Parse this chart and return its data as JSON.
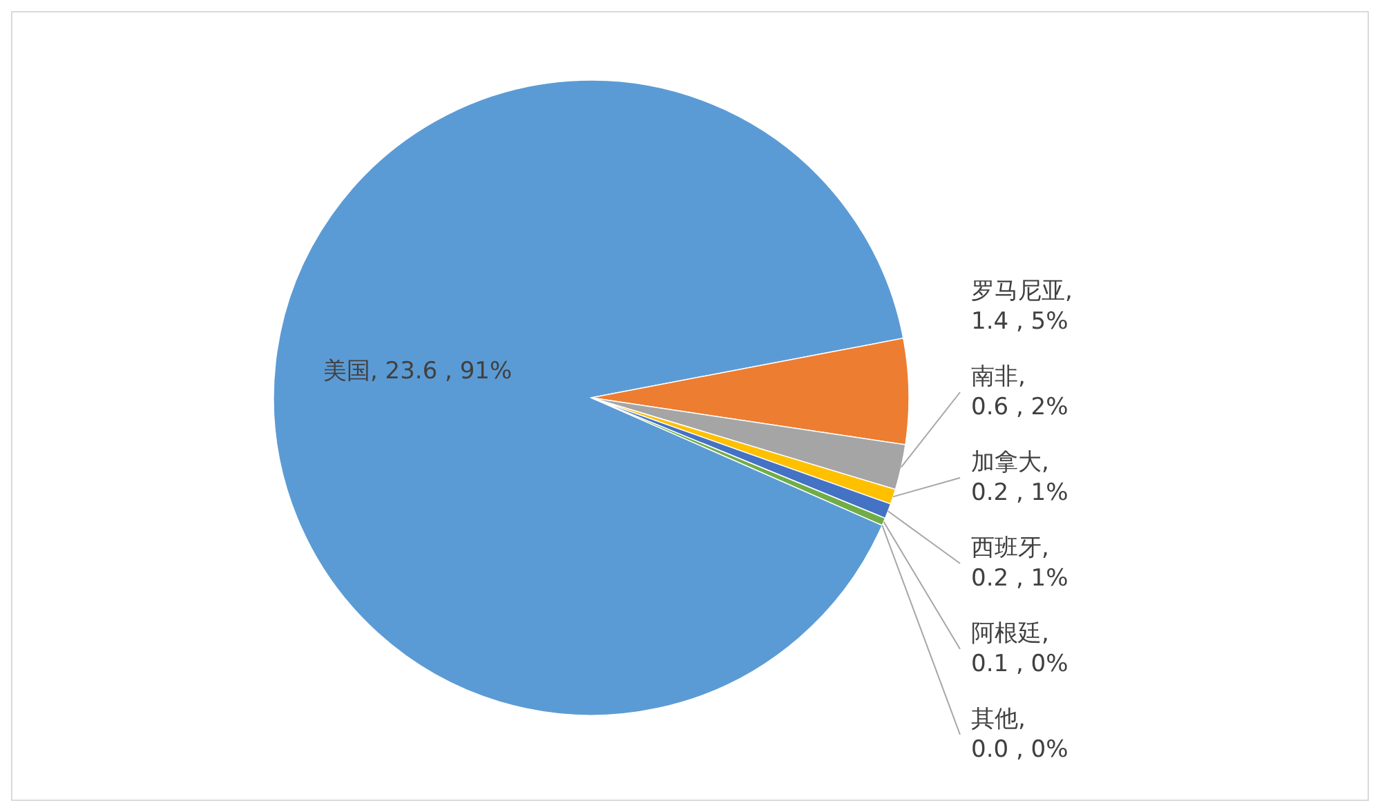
{
  "chart_data": {
    "type": "pie",
    "categories": [
      "美国",
      "罗马尼亚",
      "南非",
      "加拿大",
      "西班牙",
      "阿根廷",
      "其他"
    ],
    "values": [
      23.6,
      1.4,
      0.6,
      0.2,
      0.2,
      0.1,
      0.0
    ],
    "value_labels": [
      ", 23.6 , 91%",
      ", 1.4 , 5%",
      ", 0.6 , 2%",
      ", 0.2 , 1%",
      ", 0.2 , 1%",
      ", 0.1 , 0%",
      ", 0.0 , 0%"
    ],
    "colors": [
      "#5b9bd5",
      "#ed7d31",
      "#a5a5a5",
      "#ffc000",
      "#4472c4",
      "#70ad47",
      "#264478"
    ]
  }
}
